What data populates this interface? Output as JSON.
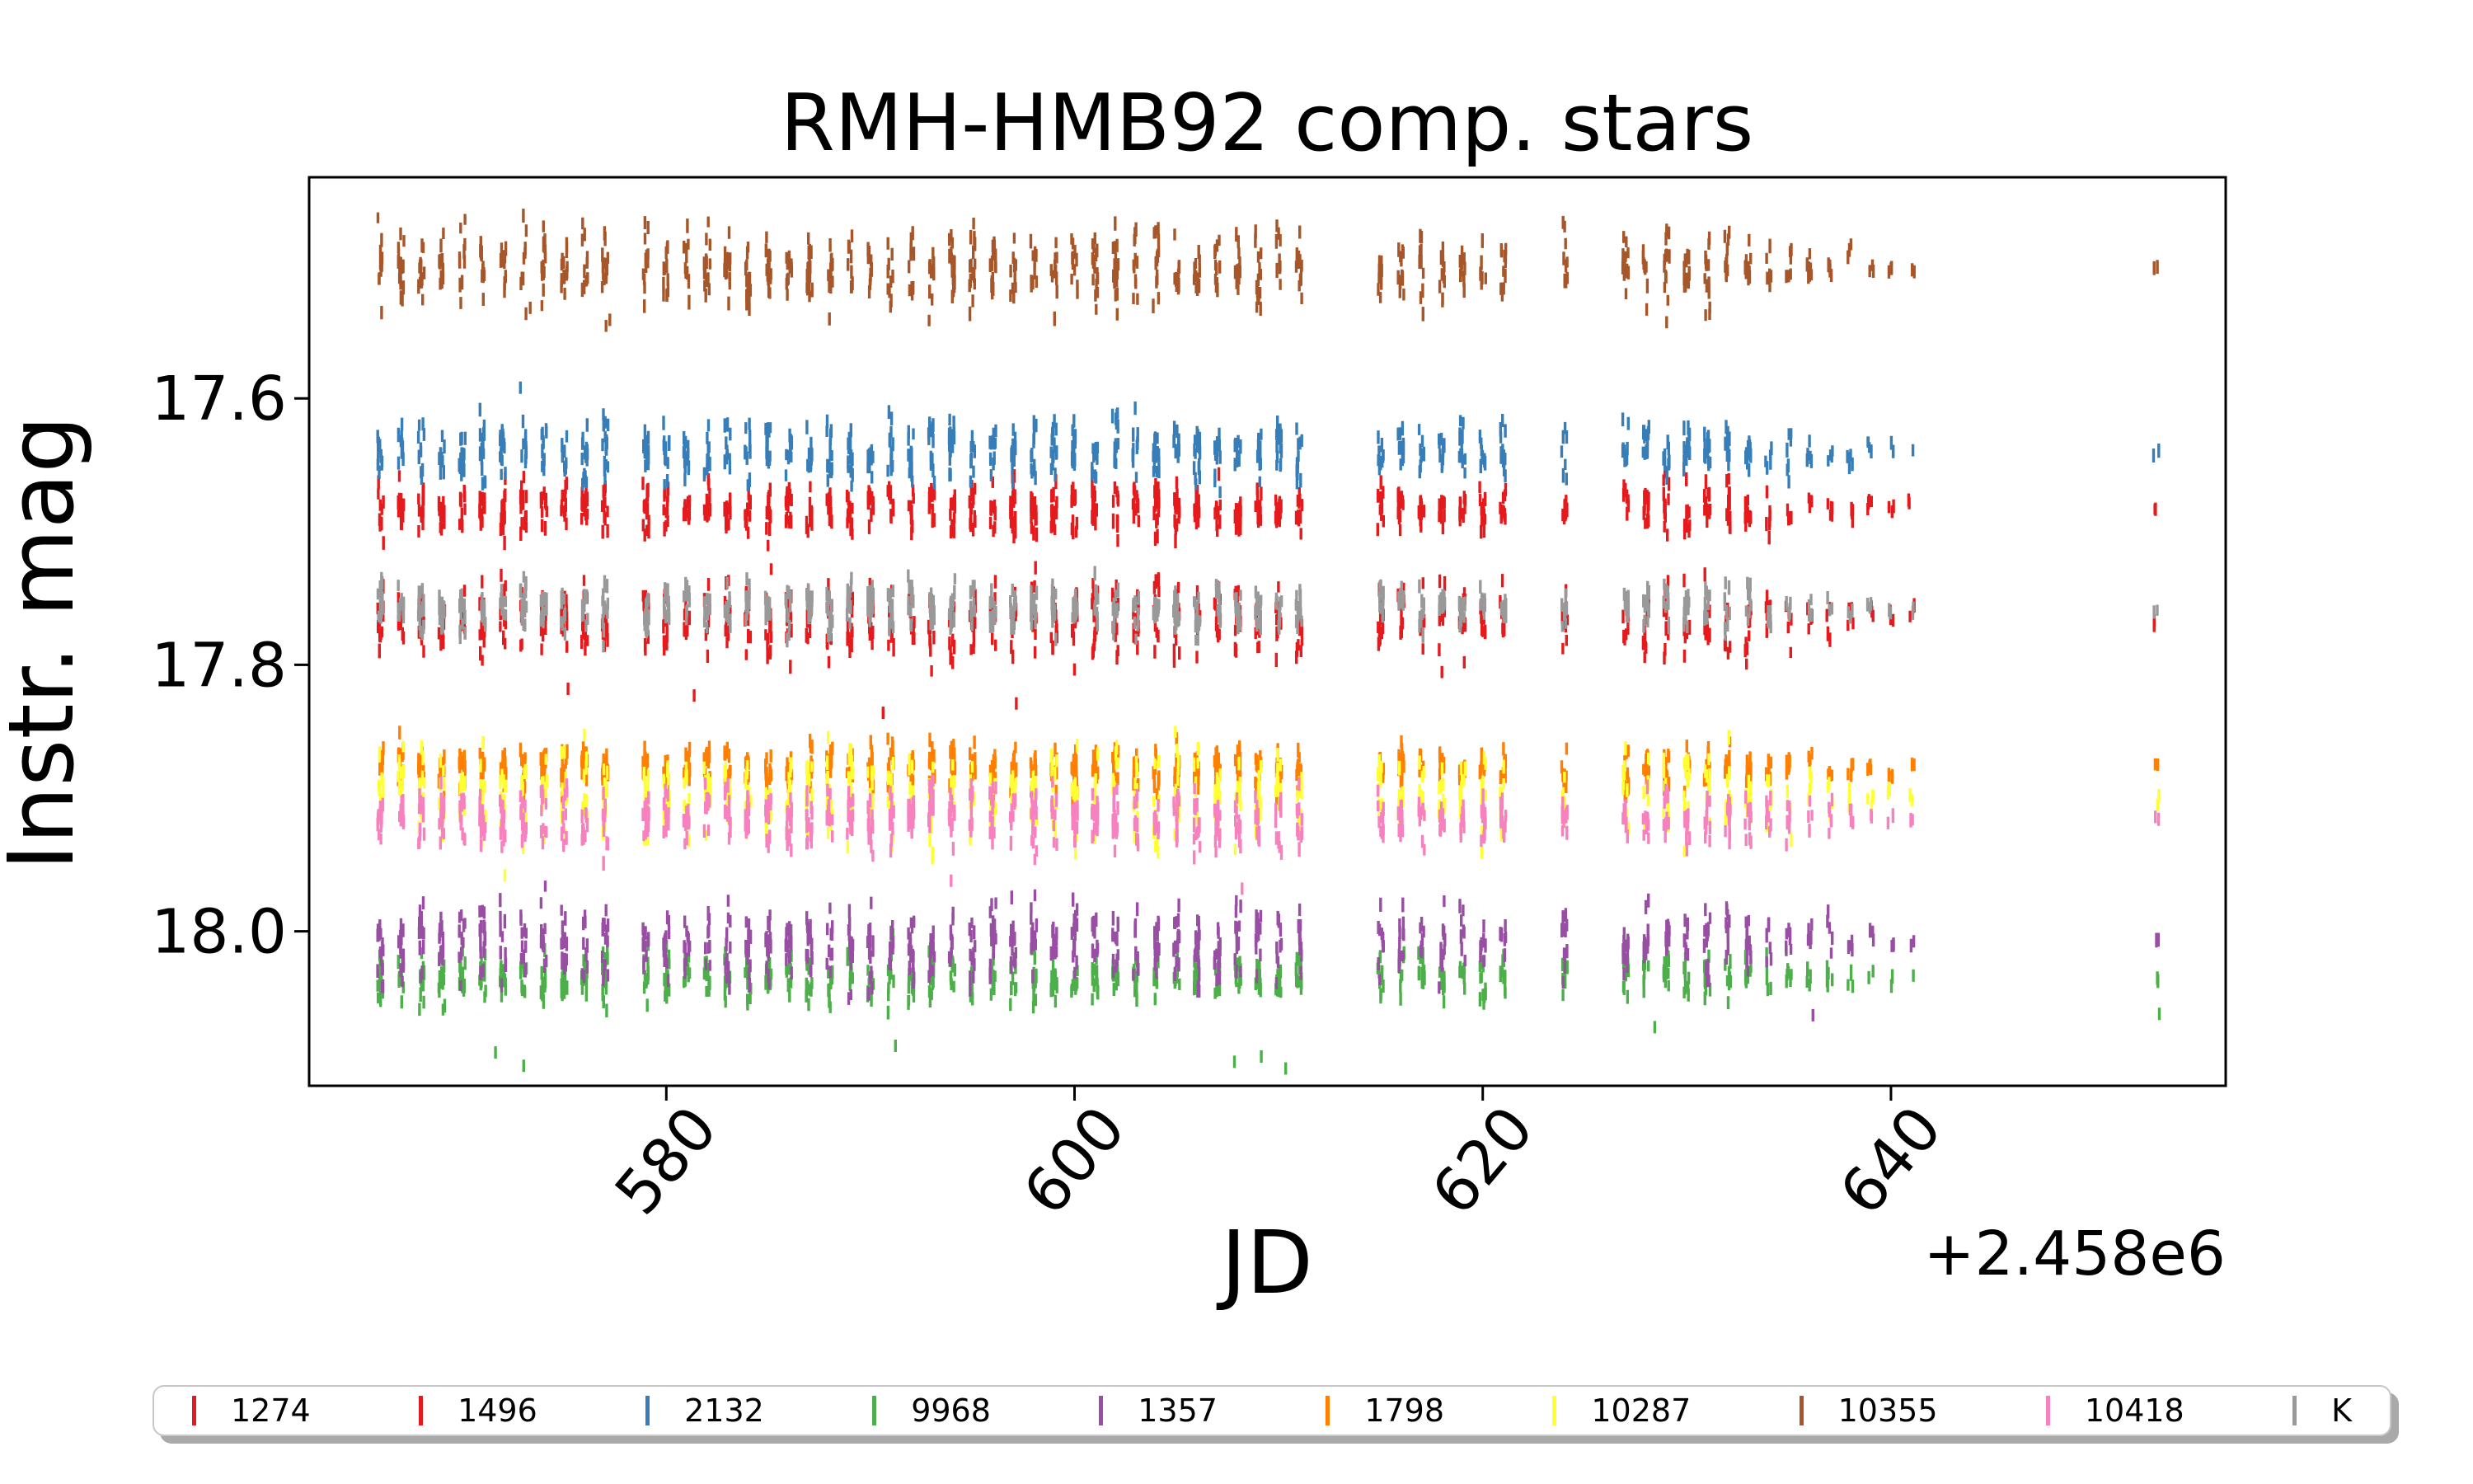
{
  "figure": {
    "background": "#ffffff",
    "frame_color": "#000000"
  },
  "chart_data": {
    "type": "scatter",
    "marker_style": "vertical-dash",
    "title": "RMH-HMB92 comp. stars",
    "xlabel": "JD",
    "ylabel": "Instr. mag",
    "x_offset_text": "+2.458e6",
    "x_ticks": [
      580,
      600,
      620,
      640
    ],
    "x_tick_labels": [
      "580",
      "600",
      "620",
      "640"
    ],
    "y_ticks": [
      17.6,
      17.8,
      18.0
    ],
    "y_tick_labels": [
      "17.6",
      "17.8",
      "18.0"
    ],
    "xlim": [
      562.5,
      656.4
    ],
    "ylim": [
      17.434,
      18.116
    ],
    "y_axis_inverted": true,
    "x_tick_rotation_deg": 50,
    "grid": false,
    "legend_position": "bottom",
    "series": [
      {
        "id": "1274",
        "legend_label": "1274",
        "color": "#e41a1c",
        "mag": 17.767,
        "spread": 0.02
      },
      {
        "id": "1496",
        "legend_label": "1496",
        "color": "#e41a1c",
        "mag": 17.683,
        "spread": 0.013
      },
      {
        "id": "2132",
        "legend_label": "2132",
        "color": "#377eb8",
        "mag": 17.64,
        "spread": 0.016
      },
      {
        "id": "9968",
        "legend_label": "9968",
        "color": "#4daf4a",
        "mag": 18.034,
        "spread": 0.013
      },
      {
        "id": "1357",
        "legend_label": "1357",
        "color": "#984ea3",
        "mag": 18.008,
        "spread": 0.02
      },
      {
        "id": "1798",
        "legend_label": "1798",
        "color": "#ff7f00",
        "mag": 17.878,
        "spread": 0.011
      },
      {
        "id": "10287",
        "legend_label": "10287",
        "color": "#ffff33",
        "mag": 17.899,
        "spread": 0.024
      },
      {
        "id": "10355",
        "legend_label": "10355",
        "color": "#a65628",
        "mag": 17.502,
        "spread": 0.02
      },
      {
        "id": "10418",
        "legend_label": "10418",
        "color": "#f781bf",
        "mag": 17.915,
        "spread": 0.016
      },
      {
        "id": "K",
        "legend_label": "K",
        "color": "#999999",
        "mag": 17.757,
        "spread": 0.012
      }
    ],
    "observing_runs": [
      {
        "jd_start": 566,
        "jd_end": 577,
        "scale": 1.0,
        "density": 1.0
      },
      {
        "jd_start": 579,
        "jd_end": 590,
        "scale": 1.0,
        "density": 1.0
      },
      {
        "jd_start": 591,
        "jd_end": 597,
        "scale": 1.0,
        "density": 1.0
      },
      {
        "jd_start": 598,
        "jd_end": 611,
        "scale": 1.0,
        "density": 1.0
      },
      {
        "jd_start": 615,
        "jd_end": 621,
        "scale": 0.9,
        "density": 0.8
      },
      {
        "jd_start": 624,
        "jd_end": 624,
        "scale": 0.85,
        "density": 0.7
      },
      {
        "jd_start": 627,
        "jd_end": 633,
        "scale": 0.95,
        "density": 0.85
      },
      {
        "jd_start": 634,
        "jd_end": 641,
        "scale": 0.8,
        "density": 0.5,
        "taper_to": 0.3
      },
      {
        "jd_start": 653,
        "jd_end": 653,
        "scale": 0.18,
        "density": 0.15
      }
    ],
    "outliers": [
      {
        "id": "10355",
        "jd": 573.4,
        "mag": 17.532
      },
      {
        "id": "10355",
        "jd": 577.2,
        "mag": 17.541
      },
      {
        "id": "2132",
        "jd": 572.8,
        "mag": 17.592
      },
      {
        "id": "1274",
        "jd": 575.2,
        "mag": 17.818
      },
      {
        "id": "1274",
        "jd": 581.4,
        "mag": 17.823
      },
      {
        "id": "1274",
        "jd": 590.6,
        "mag": 17.836
      },
      {
        "id": "1274",
        "jd": 597.1,
        "mag": 17.829
      },
      {
        "id": "10287",
        "jd": 572.1,
        "mag": 17.958
      },
      {
        "id": "10418",
        "jd": 594.0,
        "mag": 17.962
      },
      {
        "id": "10418",
        "jd": 608.2,
        "mag": 17.968
      },
      {
        "id": "9968",
        "jd": 571.6,
        "mag": 18.091
      },
      {
        "id": "9968",
        "jd": 573.0,
        "mag": 18.101
      },
      {
        "id": "9968",
        "jd": 591.3,
        "mag": 18.086
      },
      {
        "id": "9968",
        "jd": 607.8,
        "mag": 18.098
      },
      {
        "id": "9968",
        "jd": 609.1,
        "mag": 18.094
      },
      {
        "id": "9968",
        "jd": 610.3,
        "mag": 18.103
      },
      {
        "id": "9968",
        "jd": 628.5,
        "mag": 18.072
      },
      {
        "id": "1357",
        "jd": 636.2,
        "mag": 18.063
      },
      {
        "id": "9968",
        "jd": 653.2,
        "mag": 18.062
      }
    ]
  }
}
